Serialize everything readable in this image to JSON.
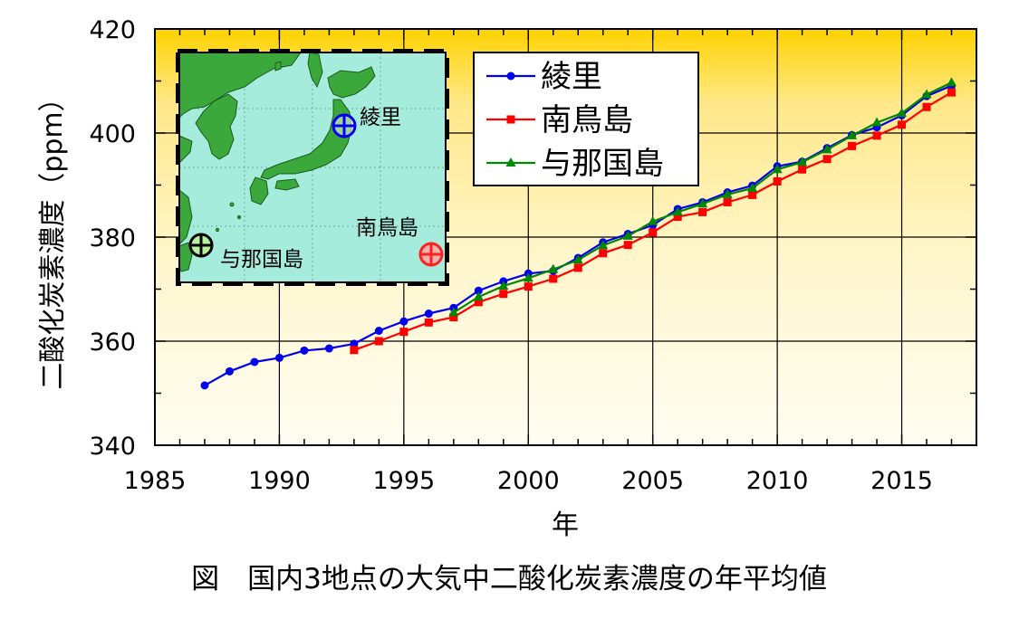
{
  "chart_data": {
    "type": "line",
    "title": "図　国内3地点の大気中二酸化炭素濃度の年平均値",
    "xlabel": "年",
    "ylabel": "二酸化炭素濃度（ppm）",
    "xlim": [
      1985,
      2018
    ],
    "ylim": [
      340,
      420
    ],
    "x_ticks": [
      1985,
      1990,
      1995,
      2000,
      2005,
      2010,
      2015
    ],
    "y_ticks": [
      340,
      360,
      380,
      400,
      420
    ],
    "grid": true,
    "background": "yellow-gradient",
    "legend_position": "top-center",
    "series": [
      {
        "name": "綾里",
        "color": "#0000ee",
        "marker": "circle",
        "points": [
          [
            1987,
            351.5
          ],
          [
            1988,
            354.2
          ],
          [
            1989,
            356.0
          ],
          [
            1990,
            356.8
          ],
          [
            1991,
            358.2
          ],
          [
            1992,
            358.6
          ],
          [
            1993,
            359.5
          ],
          [
            1994,
            362.0
          ],
          [
            1995,
            363.8
          ],
          [
            1996,
            365.3
          ],
          [
            1997,
            366.4
          ],
          [
            1998,
            369.7
          ],
          [
            1999,
            371.5
          ],
          [
            2000,
            373.0
          ],
          [
            2001,
            373.5
          ],
          [
            2002,
            376.0
          ],
          [
            2003,
            379.0
          ],
          [
            2004,
            380.6
          ],
          [
            2005,
            382.3
          ],
          [
            2006,
            385.4
          ],
          [
            2007,
            386.7
          ],
          [
            2008,
            388.6
          ],
          [
            2009,
            389.9
          ],
          [
            2010,
            393.6
          ],
          [
            2011,
            394.5
          ],
          [
            2012,
            397.1
          ],
          [
            2013,
            399.6
          ],
          [
            2014,
            401.1
          ],
          [
            2015,
            403.4
          ],
          [
            2016,
            407.1
          ],
          [
            2017,
            409.1
          ]
        ]
      },
      {
        "name": "南鳥島",
        "color": "#ff0000",
        "marker": "square",
        "points": [
          [
            1993,
            358.3
          ],
          [
            1994,
            360.0
          ],
          [
            1995,
            361.8
          ],
          [
            1996,
            363.6
          ],
          [
            1997,
            364.6
          ],
          [
            1998,
            367.5
          ],
          [
            1999,
            369.1
          ],
          [
            2000,
            370.5
          ],
          [
            2001,
            372.0
          ],
          [
            2002,
            374.1
          ],
          [
            2003,
            376.9
          ],
          [
            2004,
            378.5
          ],
          [
            2005,
            380.9
          ],
          [
            2006,
            383.9
          ],
          [
            2007,
            384.8
          ],
          [
            2008,
            386.7
          ],
          [
            2009,
            388.1
          ],
          [
            2010,
            390.7
          ],
          [
            2011,
            393.0
          ],
          [
            2012,
            395.0
          ],
          [
            2013,
            397.5
          ],
          [
            2014,
            399.5
          ],
          [
            2015,
            401.6
          ],
          [
            2016,
            405.0
          ],
          [
            2017,
            407.8
          ]
        ]
      },
      {
        "name": "与那国島",
        "color": "#008800",
        "marker": "triangle",
        "points": [
          [
            1997,
            365.5
          ],
          [
            1998,
            368.5
          ],
          [
            1999,
            370.6
          ],
          [
            2000,
            372.1
          ],
          [
            2001,
            373.8
          ],
          [
            2002,
            375.6
          ],
          [
            2003,
            378.4
          ],
          [
            2004,
            380.2
          ],
          [
            2005,
            383.0
          ],
          [
            2006,
            384.8
          ],
          [
            2007,
            386.4
          ],
          [
            2008,
            388.2
          ],
          [
            2009,
            389.4
          ],
          [
            2010,
            393.0
          ],
          [
            2011,
            394.4
          ],
          [
            2012,
            396.8
          ],
          [
            2013,
            399.5
          ],
          [
            2014,
            402.0
          ],
          [
            2015,
            403.8
          ],
          [
            2016,
            407.4
          ],
          [
            2017,
            409.7
          ]
        ]
      }
    ],
    "inset_map": {
      "labels": [
        "綾里",
        "南鳥島",
        "与那国島"
      ],
      "marker_colors": [
        "#0000ee",
        "#ff0000",
        "#008800"
      ]
    }
  }
}
